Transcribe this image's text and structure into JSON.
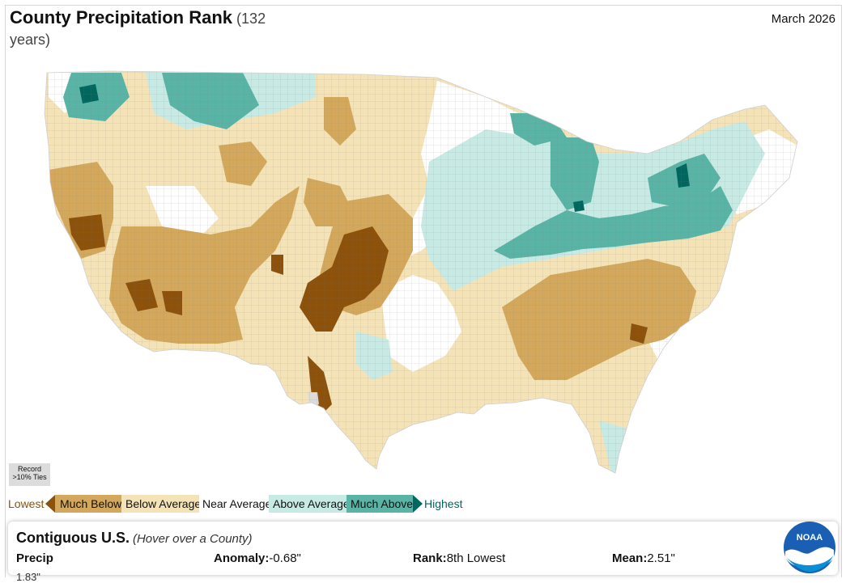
{
  "title": {
    "main": "County Precipitation Rank",
    "sub": " (132 years)"
  },
  "date": "March 2026",
  "ties_label": "Record >10% Ties",
  "legend": {
    "lowest": "Lowest",
    "much_below": "Much Below",
    "below": "Below Average",
    "near": "Near Average",
    "above": "Above Average",
    "much_above": "Much Above",
    "highest": "Highest",
    "colors": {
      "record_low": "#8c510a",
      "much_below": "#d4a85c",
      "below": "#f5e3b8",
      "near": "#ffffff",
      "above": "#c7eae4",
      "much_above": "#5ab4a6",
      "record_high": "#01665e",
      "ties": "#dcdcdc"
    }
  },
  "info": {
    "region": "Contiguous U.S.",
    "hint": "(Hover over a County)",
    "precip_label": "Precip",
    "anomaly_label": "Anomaly:",
    "anomaly_value": "-0.68\"",
    "rank_label": "Rank:",
    "rank_value": "8th Lowest",
    "mean_label": "Mean:",
    "mean_value": "2.51\"",
    "precip_value": "1.83\""
  },
  "logo_text": "NOAA"
}
